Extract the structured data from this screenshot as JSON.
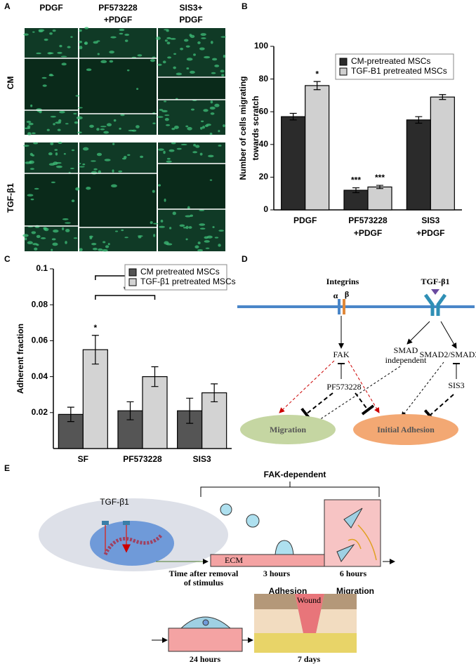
{
  "panel_labels": [
    "A",
    "B",
    "C",
    "D",
    "E"
  ],
  "panel_a": {
    "columns": [
      "PDGF",
      "PF573228\n+PDGF",
      "SIS3+\nPDGF"
    ],
    "rows": [
      "CM",
      "TGF-β1"
    ]
  },
  "chart_data": [
    {
      "type": "bar",
      "ylabel": "Number of cells migrating\ntowards scratch",
      "categories": [
        "PDGF",
        "PF573228\n+PDGF",
        "SIS3\n+PDGF"
      ],
      "series": [
        {
          "name": "CM-pretreated MSCs",
          "color": "#2b2b2b",
          "values": [
            57,
            12,
            55
          ],
          "errors": [
            2,
            1.5,
            2
          ]
        },
        {
          "name": "TGF-B1 pretreated MSCs",
          "color": "#d0d0d0",
          "values": [
            76,
            14,
            69
          ],
          "errors": [
            2.5,
            1,
            1.5
          ]
        }
      ],
      "ylim": [
        0,
        100
      ],
      "yticks": [
        0,
        20,
        40,
        60,
        80,
        100
      ],
      "annotations": [
        {
          "text": "*",
          "series": 1,
          "category": 0
        },
        {
          "text": "***",
          "series": 0,
          "category": 1
        },
        {
          "text": "***",
          "series": 1,
          "category": 1
        }
      ]
    },
    {
      "type": "bar",
      "ylabel": "Adherent fraction",
      "categories": [
        "SF",
        "PF573228",
        "SIS3"
      ],
      "series": [
        {
          "name": "CM pretreated MSCs",
          "color": "#555555",
          "values": [
            0.019,
            0.021,
            0.021
          ],
          "errors": [
            0.004,
            0.005,
            0.007
          ]
        },
        {
          "name": "TGF-β1 pretreated MSCs",
          "color": "#d3d3d3",
          "values": [
            0.055,
            0.04,
            0.031
          ],
          "errors": [
            0.008,
            0.0055,
            0.005
          ]
        }
      ],
      "ylim": [
        0,
        0.1
      ],
      "yticks": [
        0.02,
        0.04,
        0.06,
        0.08,
        0.1
      ],
      "annotations": [
        {
          "text": "*",
          "series": 1,
          "category": 0
        }
      ],
      "brackets": [
        {
          "text": "*",
          "series": 1,
          "from": 0,
          "to": 1
        },
        {
          "text": "*",
          "series": 1,
          "from": 0,
          "to": 2
        }
      ]
    }
  ],
  "panel_d": {
    "integrins": "Integrins",
    "alpha": "α",
    "beta": "β",
    "ligand": "TGF-β1",
    "fak": "FAK",
    "smad_independent": "SMAD\nindependent",
    "smad": "SMAD2/SMAD3",
    "fak_inhibitor": "PF573228",
    "smad_inhibitor": "SIS3",
    "migration": "Migration",
    "adhesion": "Initial Adhesion"
  },
  "panel_e": {
    "bracket": "FAK-dependent",
    "ligand": "TGF-β1",
    "time": "Time after removal\nof stimulus",
    "ecm": "ECM",
    "t1": "3 hours",
    "t2": "6 hours",
    "stage1": "Adhesion",
    "stage2": "Migration",
    "wound": "Wound",
    "t3": "24 hours",
    "t4": "7 days"
  }
}
